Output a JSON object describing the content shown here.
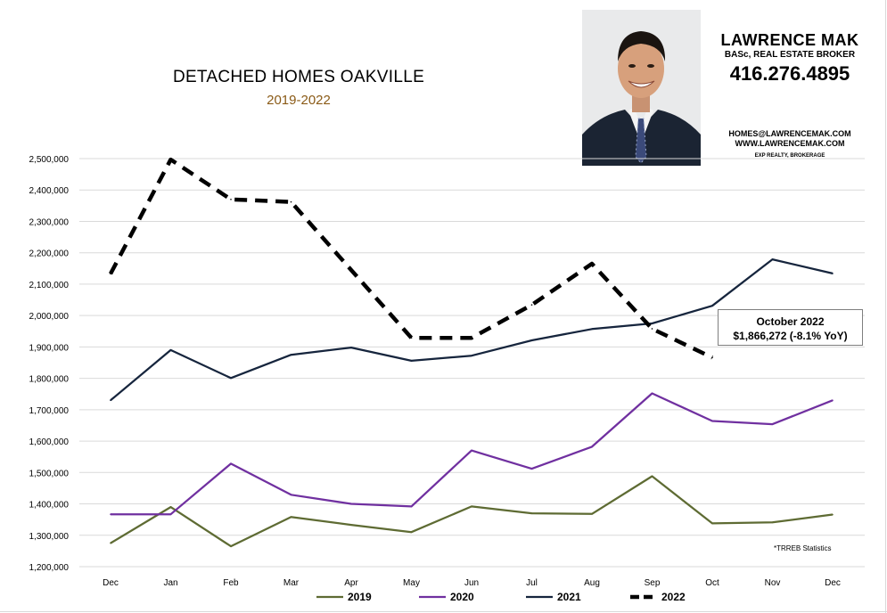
{
  "header": {
    "title": "DETACHED HOMES OAKVILLE",
    "subtitle": "2019-2022"
  },
  "agent": {
    "name": "LAWRENCE MAK",
    "credentials": "BASc, REAL ESTATE BROKER",
    "phone": "416.276.4895",
    "email": "HOMES@LAWRENCEMAK.COM",
    "website": "WWW.LAWRENCEMAK.COM",
    "brokerage": "EXP REALTY, BROKERAGE"
  },
  "callout": {
    "line1": "October 2022",
    "line2": "$1,866,272  (-8.1%  YoY)"
  },
  "footnote": "*TRREB Statistics",
  "chart_data": {
    "type": "line",
    "categories": [
      "Dec",
      "Jan",
      "Feb",
      "Mar",
      "Apr",
      "May",
      "Jun",
      "Jul",
      "Aug",
      "Sep",
      "Oct",
      "Nov",
      "Dec"
    ],
    "ylim": [
      1200000,
      2500000
    ],
    "yticks": [
      1200000,
      1300000,
      1400000,
      1500000,
      1600000,
      1700000,
      1800000,
      1900000,
      2000000,
      2100000,
      2200000,
      2300000,
      2400000,
      2500000
    ],
    "ytick_labels": [
      "1,200,000",
      "1,300,000",
      "1,400,000",
      "1,500,000",
      "1,600,000",
      "1,700,000",
      "1,800,000",
      "1,900,000",
      "2,000,000",
      "2,100,000",
      "2,200,000",
      "2,300,000",
      "2,400,000",
      "2,500,000"
    ],
    "grid": true,
    "legend_position": "bottom",
    "series": [
      {
        "name": "2019",
        "color": "#5e6b33",
        "dashed": false,
        "values": [
          1275000,
          1390000,
          1265000,
          1358000,
          1333000,
          1310000,
          1392000,
          1370000,
          1368000,
          1488000,
          1338000,
          1341000,
          1366000
        ]
      },
      {
        "name": "2020",
        "color": "#7030a0",
        "dashed": false,
        "values": [
          1367000,
          1367000,
          1528000,
          1429000,
          1400000,
          1392000,
          1570000,
          1512000,
          1582000,
          1752000,
          1664000,
          1654000,
          1730000
        ]
      },
      {
        "name": "2021",
        "color": "#16253d",
        "dashed": false,
        "values": [
          1730000,
          1890000,
          1801000,
          1875000,
          1898000,
          1856000,
          1872000,
          1921000,
          1957000,
          1975000,
          2031000,
          2179000,
          2134000
        ]
      },
      {
        "name": "2022",
        "color": "#000000",
        "dashed": true,
        "values": [
          2133000,
          2497000,
          2370000,
          2362000,
          2145000,
          1929000,
          1929000,
          2034000,
          2165000,
          1958000,
          1866272,
          null,
          null
        ]
      }
    ]
  }
}
